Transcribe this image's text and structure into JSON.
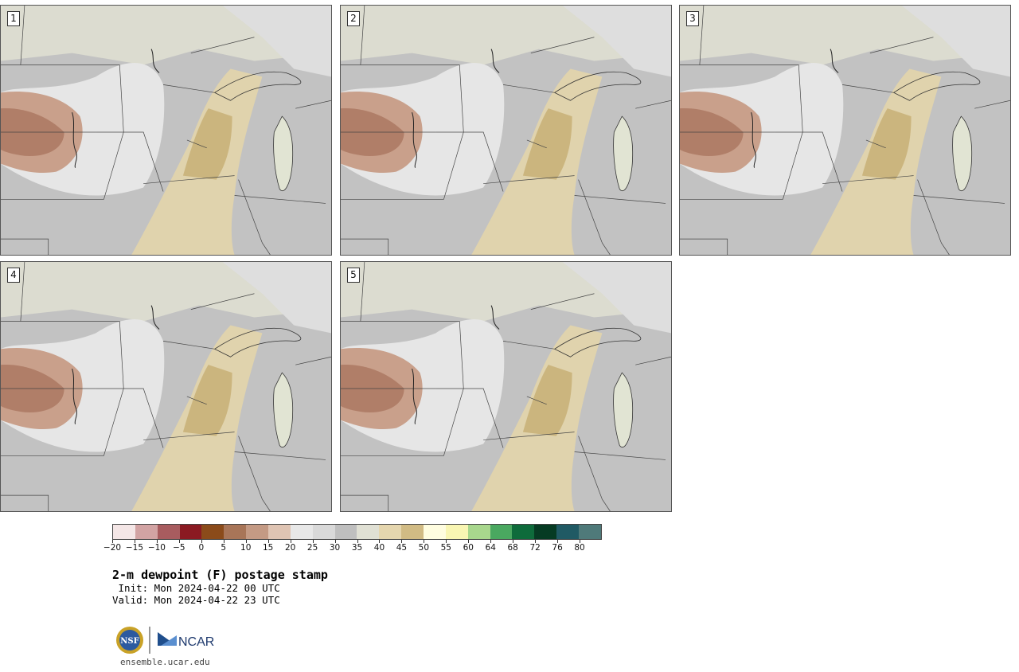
{
  "panels": [
    {
      "label": "1"
    },
    {
      "label": "2"
    },
    {
      "label": "3"
    },
    {
      "label": "4"
    },
    {
      "label": "5"
    }
  ],
  "legend": {
    "colors": [
      "#f4e6e6",
      "#d2a3a3",
      "#a85c5f",
      "#8b1a22",
      "#8b4b1a",
      "#a87558",
      "#c49a84",
      "#dfc4b3",
      "#e8e8e8",
      "#d9d9d9",
      "#bfbfbf",
      "#e0e0d4",
      "#e5d6ae",
      "#d1bb84",
      "#fffde0",
      "#f9f6b3",
      "#a8d78d",
      "#4aa860",
      "#0e6b3b",
      "#063b23",
      "#205a64",
      "#4f7a7a"
    ],
    "ticks": [
      "−20",
      "−15",
      "−10",
      "−5",
      "0",
      "5",
      "10",
      "15",
      "20",
      "25",
      "30",
      "35",
      "40",
      "45",
      "50",
      "55",
      "60",
      "64",
      "68",
      "72",
      "76",
      "80"
    ]
  },
  "title": "2-m dewpoint (F) postage stamp",
  "init": " Init: Mon 2024-04-22 00 UTC",
  "valid": "Valid: Mon 2024-04-22 23 UTC",
  "logos": {
    "left": "NSF",
    "right": "NCAR"
  },
  "url": "ensemble.ucar.edu"
}
